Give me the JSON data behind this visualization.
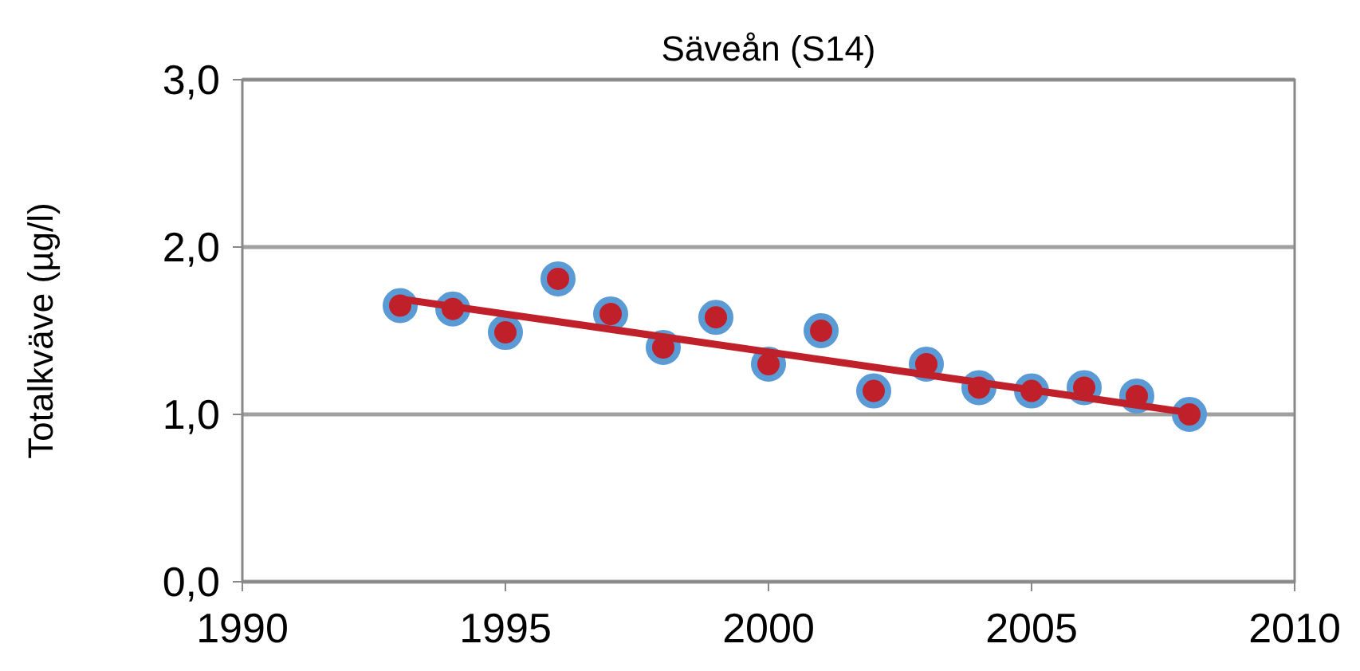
{
  "chart_data": {
    "type": "scatter",
    "title": "Säveån (S14)",
    "ylabel": "Totalkväve (µg/l)",
    "xlim": [
      1990,
      2010
    ],
    "xticks": [
      1990,
      1995,
      2000,
      2005,
      2010
    ],
    "ylim": [
      0,
      3
    ],
    "yticks": [
      {
        "value": 0,
        "label": "0,0"
      },
      {
        "value": 1,
        "label": "1,0"
      },
      {
        "value": 2,
        "label": "2,0"
      },
      {
        "value": 3,
        "label": "3,0"
      }
    ],
    "grid": "y",
    "series": [
      {
        "color": "#c0202a",
        "marker": "circle",
        "x": [
          1993,
          1994,
          1995,
          1996,
          1997,
          1998,
          1999,
          2000,
          2001,
          2002,
          2003,
          2004,
          2005,
          2006,
          2007,
          2008
        ],
        "values": [
          1.65,
          1.63,
          1.49,
          1.81,
          1.6,
          1.4,
          1.58,
          1.3,
          1.5,
          1.14,
          1.3,
          1.16,
          1.14,
          1.16,
          1.11,
          1.0
        ]
      },
      {
        "type": "line",
        "color": "#c0202a",
        "x": [
          1993,
          2008
        ],
        "values": [
          1.69,
          1.01
        ],
        "line_style": "solid"
      }
    ]
  }
}
